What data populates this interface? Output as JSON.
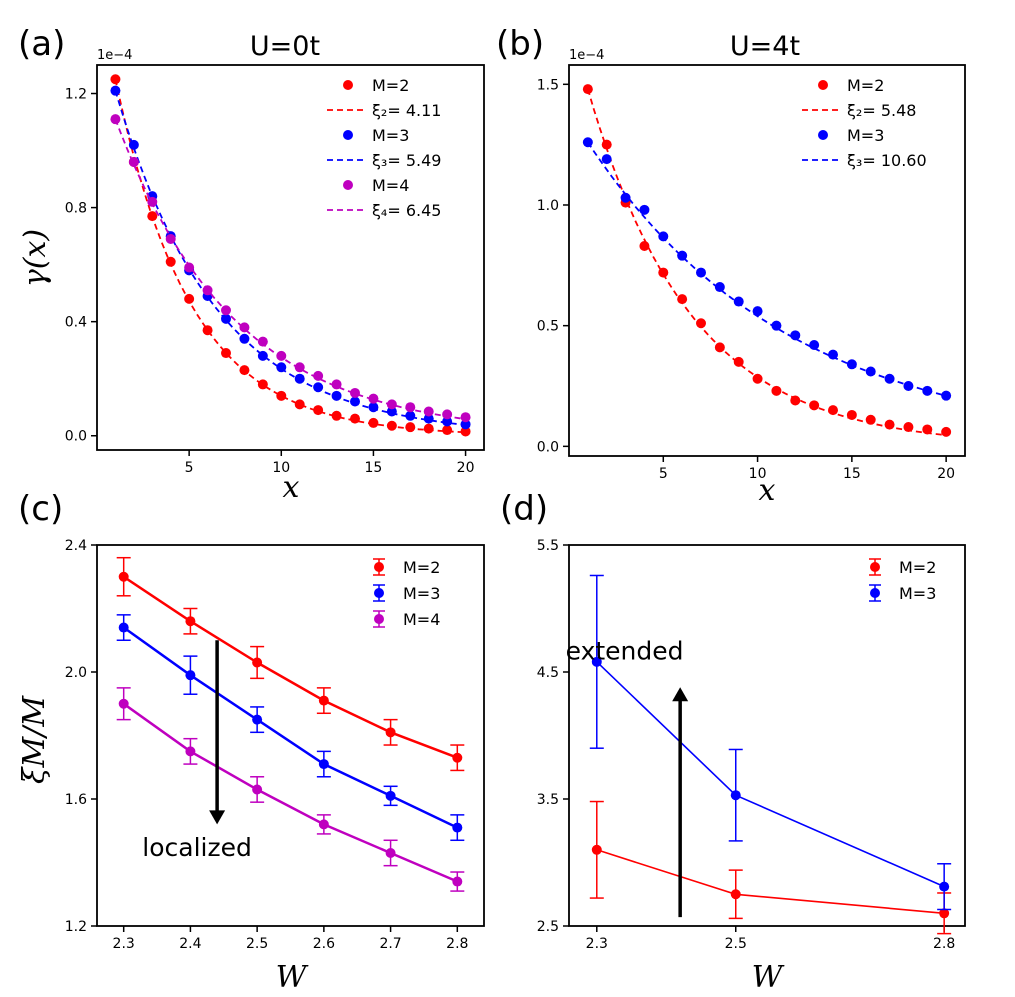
{
  "chart_data": [
    {
      "id": "a",
      "panel_label": "(a)",
      "title": "U=0t",
      "type": "scatter",
      "xlabel": "x",
      "ylabel": "γ(x)",
      "y_multiplier": "1e−4",
      "xlim": [
        0,
        21
      ],
      "ylim": [
        -0.05,
        1.3
      ],
      "xticks": [
        5,
        10,
        15,
        20
      ],
      "yticks": [
        0.0,
        0.4,
        0.8,
        1.2
      ],
      "ytick_labels": [
        "0.0",
        "0.4",
        "0.8",
        "1.2"
      ],
      "legend": "top-right",
      "x": [
        1,
        2,
        3,
        4,
        5,
        6,
        7,
        8,
        9,
        10,
        11,
        12,
        13,
        14,
        15,
        16,
        17,
        18,
        19,
        20
      ],
      "series": [
        {
          "name": "M=2",
          "fit_label": "ξ₂= 4.11",
          "color": "#ff0000",
          "xi": 4.11,
          "values": [
            1.25,
            0.96,
            0.77,
            0.61,
            0.48,
            0.37,
            0.29,
            0.23,
            0.18,
            0.14,
            0.11,
            0.09,
            0.07,
            0.06,
            0.045,
            0.035,
            0.03,
            0.025,
            0.02,
            0.015
          ]
        },
        {
          "name": "M=3",
          "fit_label": "ξ₃= 5.49",
          "color": "#0000ff",
          "xi": 5.49,
          "values": [
            1.21,
            1.02,
            0.84,
            0.7,
            0.58,
            0.49,
            0.41,
            0.34,
            0.28,
            0.24,
            0.2,
            0.17,
            0.14,
            0.12,
            0.1,
            0.085,
            0.07,
            0.06,
            0.05,
            0.04
          ]
        },
        {
          "name": "M=4",
          "fit_label": "ξ₄= 6.45",
          "color": "#bf00bf",
          "xi": 6.45,
          "values": [
            1.11,
            0.96,
            0.82,
            0.69,
            0.59,
            0.51,
            0.44,
            0.38,
            0.33,
            0.28,
            0.24,
            0.21,
            0.18,
            0.15,
            0.13,
            0.11,
            0.1,
            0.085,
            0.075,
            0.065
          ]
        }
      ]
    },
    {
      "id": "b",
      "panel_label": "(b)",
      "title": "U=4t",
      "type": "scatter",
      "xlabel": "x",
      "ylabel": "",
      "y_multiplier": "1e−4",
      "xlim": [
        0,
        21
      ],
      "ylim": [
        -0.04,
        1.58
      ],
      "xticks": [
        5,
        10,
        15,
        20
      ],
      "yticks": [
        0.0,
        0.5,
        1.0,
        1.5
      ],
      "ytick_labels": [
        "0.0",
        "0.5",
        "1.0",
        "1.5"
      ],
      "legend": "top-right",
      "x": [
        1,
        2,
        3,
        4,
        5,
        6,
        7,
        8,
        9,
        10,
        11,
        12,
        13,
        14,
        15,
        16,
        17,
        18,
        19,
        20
      ],
      "series": [
        {
          "name": "M=2",
          "fit_label": "ξ₂= 5.48",
          "color": "#ff0000",
          "xi": 5.48,
          "values": [
            1.48,
            1.25,
            1.01,
            0.83,
            0.72,
            0.61,
            0.51,
            0.41,
            0.35,
            0.28,
            0.23,
            0.19,
            0.17,
            0.15,
            0.13,
            0.11,
            0.09,
            0.08,
            0.07,
            0.06
          ]
        },
        {
          "name": "M=3",
          "fit_label": "ξ₃= 10.60",
          "color": "#0000ff",
          "xi": 10.6,
          "values": [
            1.26,
            1.19,
            1.03,
            0.98,
            0.87,
            0.79,
            0.72,
            0.66,
            0.6,
            0.56,
            0.5,
            0.46,
            0.42,
            0.38,
            0.34,
            0.31,
            0.28,
            0.25,
            0.23,
            0.21
          ]
        }
      ]
    },
    {
      "id": "c",
      "panel_label": "(c)",
      "type": "line",
      "xlabel": "W",
      "ylabel": "ξM/M",
      "xlim": [
        2.26,
        2.84
      ],
      "ylim": [
        1.2,
        2.4
      ],
      "xticks": [
        2.3,
        2.4,
        2.5,
        2.6,
        2.7,
        2.8
      ],
      "xtick_labels": [
        "2.3",
        "2.4",
        "2.5",
        "2.6",
        "2.7",
        "2.8"
      ],
      "yticks": [
        1.2,
        1.6,
        2.0,
        2.4
      ],
      "ytick_labels": [
        "1.2",
        "1.6",
        "2.0",
        "2.4"
      ],
      "legend": "top-right",
      "annotation": {
        "text": "localized",
        "arrow": "down",
        "arrow_from": [
          2.44,
          2.1
        ],
        "arrow_to": [
          2.44,
          1.52
        ],
        "text_at": [
          2.41,
          1.42
        ]
      },
      "x": [
        2.3,
        2.4,
        2.5,
        2.6,
        2.7,
        2.8
      ],
      "series": [
        {
          "name": "M=2",
          "color": "#ff0000",
          "values": [
            2.3,
            2.16,
            2.03,
            1.91,
            1.81,
            1.73
          ],
          "errors": [
            0.06,
            0.04,
            0.05,
            0.04,
            0.04,
            0.04
          ]
        },
        {
          "name": "M=3",
          "color": "#0000ff",
          "values": [
            2.14,
            1.99,
            1.85,
            1.71,
            1.61,
            1.51
          ],
          "errors": [
            0.04,
            0.06,
            0.04,
            0.04,
            0.03,
            0.04
          ]
        },
        {
          "name": "M=4",
          "color": "#bf00bf",
          "values": [
            1.9,
            1.75,
            1.63,
            1.52,
            1.43,
            1.34
          ],
          "errors": [
            0.05,
            0.04,
            0.04,
            0.03,
            0.04,
            0.03
          ]
        }
      ]
    },
    {
      "id": "d",
      "panel_label": "(d)",
      "type": "line",
      "xlabel": "W",
      "ylabel": "",
      "xlim": [
        2.26,
        2.83
      ],
      "ylim": [
        2.5,
        5.5
      ],
      "xticks": [
        2.3,
        2.5,
        2.8
      ],
      "xtick_labels": [
        "2.3",
        "2.5",
        "2.8"
      ],
      "yticks": [
        2.5,
        3.5,
        4.5,
        5.5
      ],
      "ytick_labels": [
        "2.5",
        "3.5",
        "4.5",
        "5.5"
      ],
      "legend": "top-right",
      "annotation": {
        "text": "extended",
        "arrow": "up",
        "arrow_from": [
          2.42,
          2.57
        ],
        "arrow_to": [
          2.42,
          4.38
        ],
        "text_at": [
          2.34,
          4.6
        ]
      },
      "x": [
        2.3,
        2.5,
        2.8
      ],
      "series": [
        {
          "name": "M=2",
          "color": "#ff0000",
          "values": [
            3.1,
            2.75,
            2.6
          ],
          "errors": [
            0.38,
            0.19,
            0.16
          ]
        },
        {
          "name": "M=3",
          "color": "#0000ff",
          "values": [
            4.58,
            3.53,
            2.81
          ],
          "errors": [
            0.68,
            0.36,
            0.18
          ]
        }
      ]
    }
  ]
}
